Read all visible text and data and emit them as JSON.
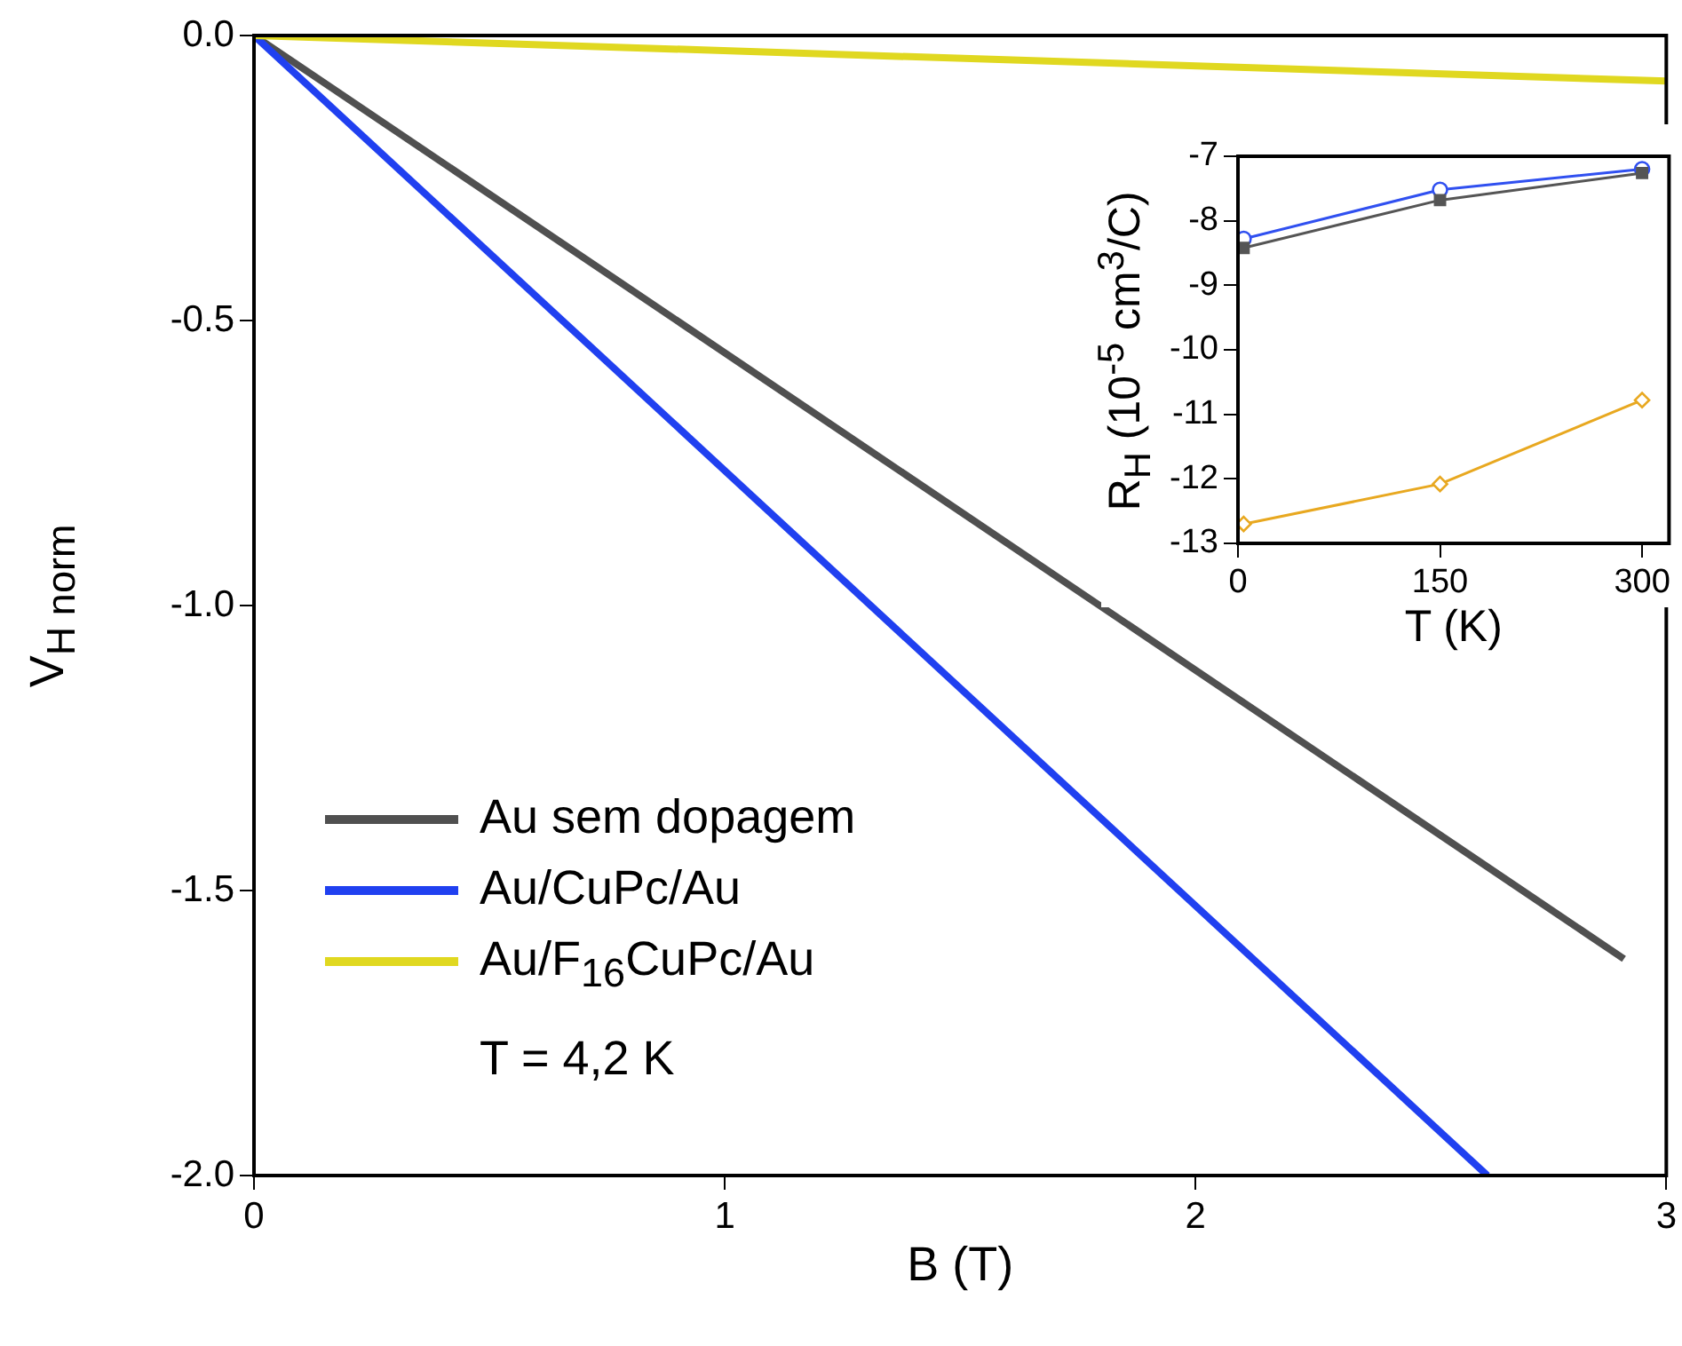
{
  "chart_data": [
    {
      "type": "line",
      "xlabel": "B (T)",
      "ylabel": "V$_{H norm}$",
      "xlim": [
        0,
        3
      ],
      "xticks": [
        0,
        1,
        2,
        3
      ],
      "ylim": [
        -2,
        0
      ],
      "yticks": [
        {
          "value": 0,
          "label": "0.0"
        },
        {
          "value": -0.5,
          "label": "-0.5"
        },
        {
          "value": -1,
          "label": "-1.0"
        },
        {
          "value": -1.5,
          "label": "-1.5"
        },
        {
          "value": -2,
          "label": "-2.0"
        }
      ],
      "marker": "none",
      "legend": "bottom left",
      "annotations": [
        "T = 4,2 K"
      ],
      "series": [
        {
          "name": "Au sem dopagem",
          "color": "#505050",
          "x": [
            0,
            2.91
          ],
          "values": [
            0,
            -1.62
          ]
        },
        {
          "name": "Au/CuPc/Au",
          "color": "#2040f0",
          "x": [
            0,
            2.62
          ],
          "values": [
            0,
            -2.0
          ]
        },
        {
          "name": "Au/F$_{16}$CuPc/Au",
          "color": "#e0d820",
          "x": [
            0,
            3.0
          ],
          "values": [
            0,
            -0.08
          ]
        }
      ]
    },
    {
      "type": "line",
      "xlabel": "T (K)",
      "ylabel": "R$_{H}$ (10$^{-5}$ cm$^{3}$/C)",
      "xlim": [
        0,
        320
      ],
      "xticks": [
        0,
        150,
        300
      ],
      "ylim": [
        -13,
        -7
      ],
      "yticks": [
        -13,
        -12,
        -11,
        -10,
        -9,
        -8,
        -7
      ],
      "legend": false,
      "series": [
        {
          "color": "#3050f0",
          "marker": "circle",
          "x": [
            4.2,
            150,
            300
          ],
          "values": [
            -8.28,
            -7.52,
            -7.2
          ]
        },
        {
          "color": "#555555",
          "marker": "square",
          "x": [
            4.2,
            150,
            300
          ],
          "values": [
            -8.42,
            -7.68,
            -7.26
          ]
        },
        {
          "color": "#e8a820",
          "marker": "diamond",
          "x": [
            4.2,
            150,
            300
          ],
          "values": [
            -12.7,
            -12.08,
            -10.78
          ]
        }
      ]
    }
  ]
}
